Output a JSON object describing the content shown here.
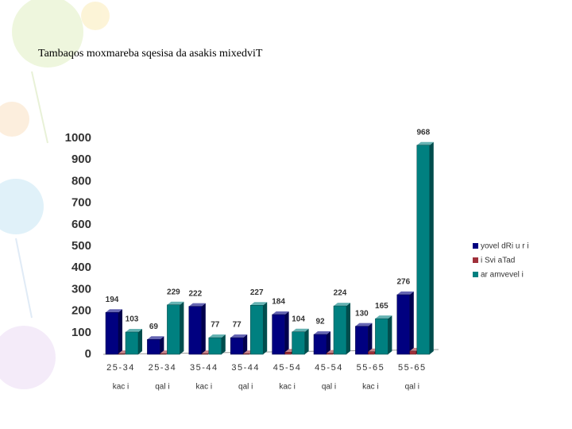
{
  "chart_data": {
    "type": "bar3d",
    "title": "Tambaqos moxmareba sqesisa da asakis mixedviT",
    "categories": [
      "25-34",
      "25-34",
      "35-44",
      "35-44",
      "45-54",
      "45-54",
      "55-65",
      "55-65"
    ],
    "subcategories": [
      "kac i",
      "qal i",
      "kac i",
      "qal i",
      "kac i",
      "qal i",
      "kac i",
      "qal i"
    ],
    "series": [
      {
        "name": "yovel dRi u r i",
        "color": "#000080",
        "values": [
          194,
          69,
          222,
          77,
          184,
          92,
          130,
          276
        ]
      },
      {
        "name": "i Svi aTad",
        "color": "#a0303a",
        "values": [
          3,
          3,
          3,
          3,
          10,
          5,
          12,
          15
        ]
      },
      {
        "name": "ar amvevel i",
        "color": "#008080",
        "values": [
          103,
          229,
          77,
          227,
          104,
          224,
          165,
          968
        ]
      }
    ],
    "ylim": [
      0,
      1000
    ],
    "yticks": [
      0,
      100,
      200,
      300,
      400,
      500,
      600,
      700,
      800,
      900,
      1000
    ],
    "show_value_labels": [
      true,
      false,
      true
    ],
    "legend": "right"
  }
}
